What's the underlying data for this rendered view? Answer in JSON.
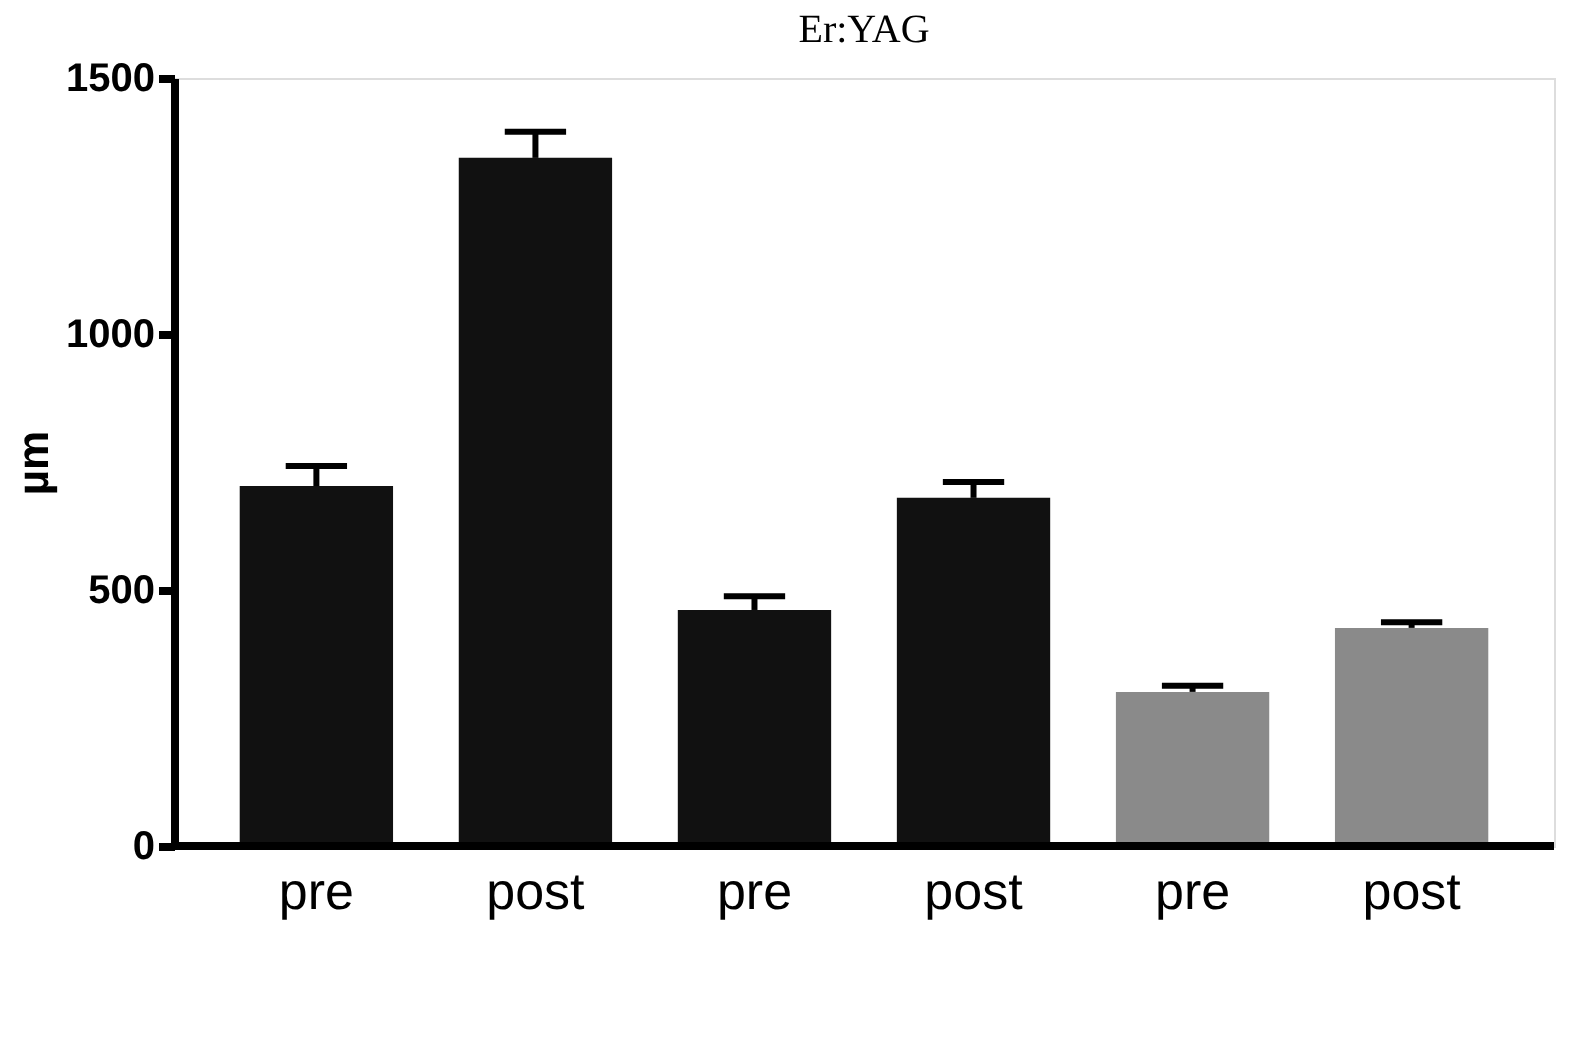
{
  "chart_data": {
    "type": "bar",
    "title": "Er:YAG",
    "ylabel": "µm",
    "categories": [
      "pre",
      "post",
      "pre",
      "post",
      "pre",
      "post"
    ],
    "values": [
      703,
      1344,
      461,
      680,
      301,
      426
    ],
    "colors": [
      "#111111",
      "#111111",
      "#111111",
      "#111111",
      "#8a8a8a",
      "#8a8a8a"
    ],
    "errors": [
      [
        703,
        742
      ],
      [
        1344,
        1395
      ],
      [
        461,
        488
      ],
      [
        680,
        711
      ],
      [
        301,
        313
      ],
      [
        426,
        437
      ]
    ],
    "ylim": [
      0,
      1500
    ],
    "yticks": [
      0,
      500,
      1000,
      1500
    ],
    "grid": false
  }
}
